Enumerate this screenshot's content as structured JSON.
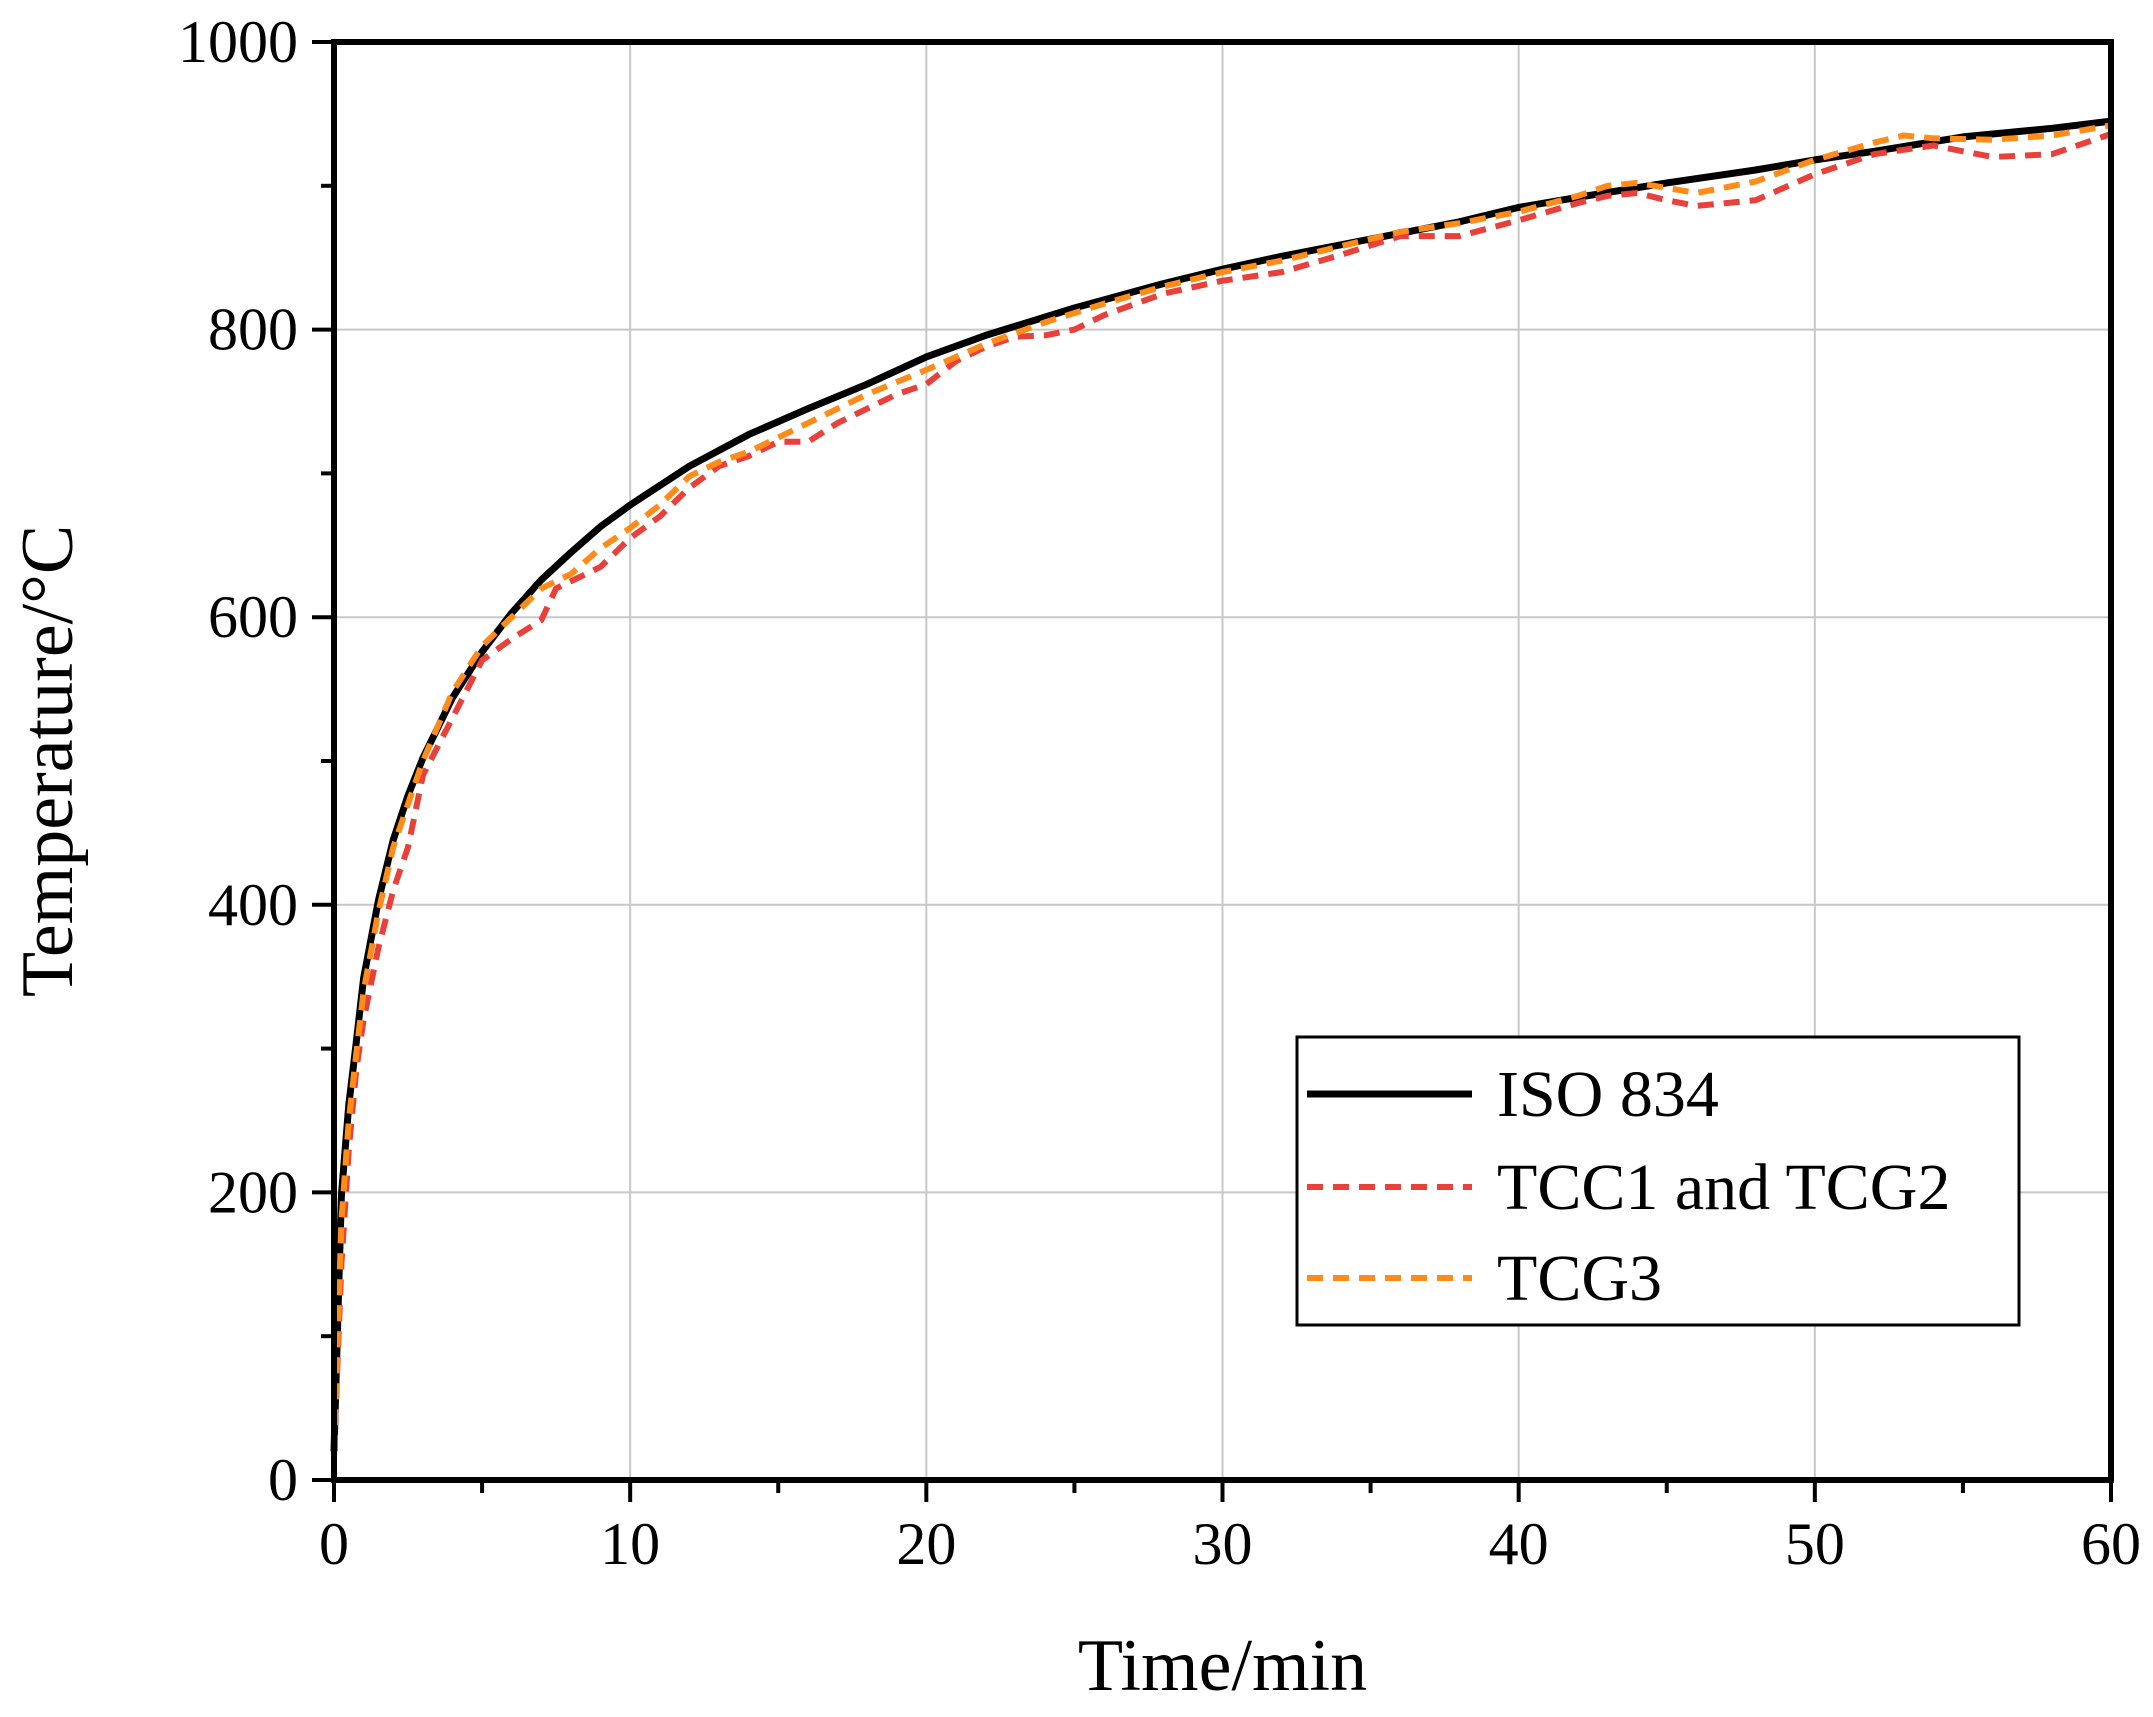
{
  "chart_data": {
    "type": "line",
    "title": "",
    "xlabel": "Time/min",
    "ylabel": "Temperature/°C",
    "xlim": [
      0,
      60
    ],
    "ylim": [
      0,
      1000
    ],
    "xticks": [
      0,
      10,
      20,
      30,
      40,
      50,
      60
    ],
    "yticks": [
      0,
      200,
      400,
      600,
      800,
      1000
    ],
    "x_minor_step": 5,
    "y_minor_step": 100,
    "grid": true,
    "legend_position": "bottom-right",
    "series": [
      {
        "name": "ISO 834",
        "color": "#000000",
        "style": "solid",
        "x": [
          0,
          0.25,
          0.5,
          0.75,
          1,
          1.5,
          2,
          2.5,
          3,
          4,
          5,
          6,
          7,
          8,
          9,
          10,
          12,
          14,
          16,
          18,
          20,
          22,
          25,
          28,
          30,
          32,
          35,
          38,
          40,
          42,
          45,
          48,
          50,
          52,
          55,
          58,
          60
        ],
        "y": [
          20,
          198,
          261,
          304,
          349,
          403,
          445,
          476,
          502,
          544,
          576,
          603,
          626,
          645,
          663,
          678,
          705,
          727,
          745,
          762,
          781,
          796,
          815,
          832,
          842,
          851,
          863,
          875,
          885,
          892,
          902,
          911,
          918,
          924,
          934,
          940,
          945
        ]
      },
      {
        "name": "TCC1 and TCG2",
        "color": "#e8413c",
        "style": "dashed",
        "x": [
          0,
          0.25,
          0.5,
          0.75,
          1,
          1.5,
          2,
          2.5,
          3,
          4,
          5,
          6,
          7,
          7.5,
          8,
          9,
          10,
          11,
          12,
          13,
          14,
          15,
          16,
          17,
          18,
          19,
          20,
          21,
          22,
          23,
          24,
          25,
          26,
          28,
          30,
          32,
          34,
          36,
          38,
          40,
          42,
          43,
          44,
          45,
          46,
          47,
          48,
          50,
          52,
          54,
          56,
          58,
          60
        ],
        "y": [
          20,
          150,
          230,
          285,
          320,
          370,
          410,
          440,
          490,
          530,
          570,
          585,
          598,
          620,
          625,
          635,
          655,
          670,
          690,
          705,
          712,
          722,
          722,
          735,
          745,
          755,
          762,
          778,
          788,
          795,
          796,
          800,
          810,
          825,
          834,
          840,
          852,
          865,
          865,
          876,
          888,
          893,
          895,
          890,
          886,
          888,
          890,
          908,
          922,
          928,
          920,
          922,
          936
        ]
      },
      {
        "name": "TCG3",
        "color": "#ff8c1a",
        "style": "dashed",
        "x": [
          0,
          0.25,
          0.5,
          0.75,
          1,
          1.5,
          2,
          2.5,
          3,
          4,
          5,
          6,
          7,
          8,
          9,
          10,
          11,
          12,
          13,
          14,
          15,
          16,
          18,
          20,
          22,
          24,
          26,
          28,
          30,
          32,
          34,
          36,
          38,
          40,
          42,
          43,
          44,
          46,
          48,
          50,
          52,
          53,
          54,
          56,
          58,
          60
        ],
        "y": [
          20,
          180,
          250,
          296,
          340,
          395,
          440,
          470,
          500,
          548,
          580,
          600,
          620,
          630,
          648,
          662,
          678,
          698,
          708,
          715,
          725,
          735,
          755,
          772,
          790,
          805,
          818,
          830,
          840,
          848,
          858,
          868,
          874,
          882,
          893,
          900,
          902,
          895,
          903,
          918,
          930,
          935,
          933,
          932,
          935,
          942
        ]
      }
    ]
  }
}
